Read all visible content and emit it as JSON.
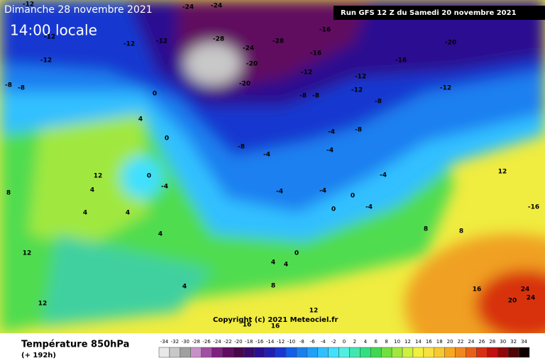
{
  "header": {
    "date": "Dimanche 28 novembre 2021",
    "time": "14:00 locale",
    "run": "Run GFS 12 Z du Samedi 20 novembre 2021"
  },
  "footer": {
    "title": "Température 850hPa",
    "lead": "(+ 192h)",
    "copyright": "Copyright (c) 2021 Meteociel.fr"
  },
  "scale": {
    "values": [
      -34,
      -32,
      -30,
      -28,
      -26,
      -24,
      -22,
      -20,
      -18,
      -16,
      -14,
      -12,
      -10,
      -8,
      -6,
      -4,
      -2,
      0,
      2,
      4,
      6,
      8,
      10,
      12,
      14,
      16,
      18,
      20,
      22,
      24,
      26,
      28,
      30,
      32,
      34
    ],
    "colors": [
      "#e8e8e8",
      "#c8c8c8",
      "#a0a0a0",
      "#c890c8",
      "#a050a0",
      "#802080",
      "#600c60",
      "#480848",
      "#3a0a6a",
      "#2a1090",
      "#2020b0",
      "#1838d0",
      "#1060e8",
      "#1a80f0",
      "#20a0f8",
      "#30c0ff",
      "#40e0ff",
      "#50f0e0",
      "#40e8b0",
      "#30e080",
      "#40d850",
      "#70e040",
      "#a0e840",
      "#d0f040",
      "#f0f040",
      "#f8e040",
      "#f8c830",
      "#f8a820",
      "#f08820",
      "#e86018",
      "#d83010",
      "#c01010",
      "#900808",
      "#500404",
      "#100000"
    ]
  },
  "contour_labels": [
    -12,
    -12,
    -12,
    -8,
    -8,
    -12,
    -12,
    -24,
    -24,
    -28,
    -24,
    -20,
    -20,
    -28,
    -16,
    -16,
    -16,
    -20,
    -12,
    -12,
    -12,
    -12,
    -8,
    -8,
    -8,
    -8,
    -8,
    0,
    0,
    4,
    -4,
    -4,
    -4,
    -4,
    -4,
    -4,
    0,
    -4,
    0,
    0,
    0,
    -4,
    12,
    4,
    4,
    4,
    4,
    4,
    4,
    4,
    8,
    8,
    12,
    -16,
    24,
    24,
    20,
    16,
    12,
    12,
    8,
    8,
    12,
    16,
    16
  ]
}
